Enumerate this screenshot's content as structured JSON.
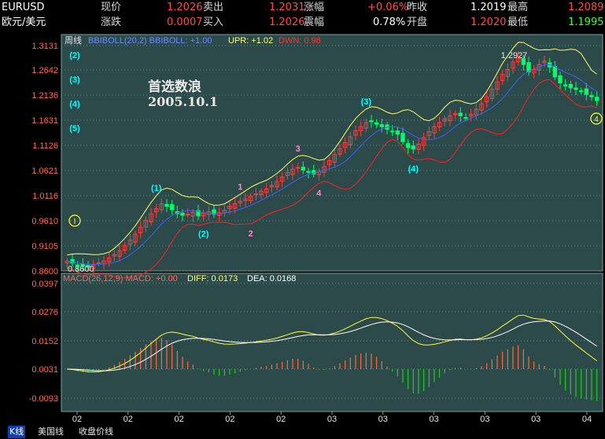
{
  "quote": {
    "symbol": "EURUSD",
    "name": "欧元/美元",
    "cells": [
      {
        "label": "现价",
        "value": "1.2026",
        "color": "red"
      },
      {
        "label": "卖出",
        "value": "1.2031",
        "color": "red"
      },
      {
        "label": "涨幅",
        "value": "+0.06%",
        "color": "red"
      },
      {
        "label": "昨收",
        "value": "1.2019",
        "color": "wht"
      },
      {
        "label": "最高",
        "value": "1.2089",
        "color": "red"
      },
      {
        "label": "涨跌",
        "value": "0.0007",
        "color": "red"
      },
      {
        "label": "买入",
        "value": "1.2026",
        "color": "red"
      },
      {
        "label": "震幅",
        "value": "0.78%",
        "color": "wht"
      },
      {
        "label": "开盘",
        "value": "1.2020",
        "color": "red"
      },
      {
        "label": "最低",
        "value": "1.1995",
        "color": "grn"
      }
    ]
  },
  "annotation": {
    "line1": "首选数浪",
    "line2": "2005.10.1"
  },
  "tabs": [
    "K线",
    "美国线",
    "收盘价线"
  ],
  "chart_data": [
    {
      "type": "candlestick",
      "legend": {
        "period": "周线",
        "indicator": "BBIBOLL(20,2) BBIBOLL: +1.00",
        "upr": "UPR: +1.02",
        "dwn": "DWN: 0.98"
      },
      "y_ticks": [
        "1.3131",
        "1.2642",
        "1.2136",
        "1.1631",
        "1.1126",
        "1.0621",
        "1.0116",
        "0.9610",
        "0.9105",
        "0.8600"
      ],
      "ylim": [
        0.86,
        1.3131
      ],
      "x_ticks": [
        "02",
        "02",
        "02",
        "02",
        "02",
        "03",
        "03",
        "03",
        "03",
        "03",
        "04"
      ],
      "high_label": "1.2927",
      "low_label": "0.8600",
      "colors": {
        "up": "#ff3c3c",
        "down": "#00ff66",
        "mid": "#3a62ff",
        "upper": "#ffff66",
        "lower": "#ff2020",
        "grid": "#5f8a8a",
        "wave_cyan": "#00ffff",
        "wave_pink": "#ff88cc"
      },
      "closes": [
        0.88,
        0.876,
        0.872,
        0.87,
        0.868,
        0.872,
        0.876,
        0.88,
        0.886,
        0.893,
        0.901,
        0.911,
        0.922,
        0.934,
        0.948,
        0.962,
        0.975,
        0.985,
        0.995,
        0.99,
        0.983,
        0.975,
        0.972,
        0.974,
        0.978,
        0.971,
        0.976,
        0.979,
        0.974,
        0.977,
        0.982,
        0.99,
        0.995,
        1.0,
        1.005,
        1.01,
        1.015,
        1.02,
        1.025,
        1.032,
        1.04,
        1.049,
        1.058,
        1.065,
        1.068,
        1.063,
        1.058,
        1.055,
        1.06,
        1.07,
        1.082,
        1.094,
        1.106,
        1.118,
        1.13,
        1.142,
        1.15,
        1.158,
        1.16,
        1.155,
        1.15,
        1.145,
        1.14,
        1.135,
        1.12,
        1.108,
        1.105,
        1.115,
        1.128,
        1.14,
        1.15,
        1.158,
        1.166,
        1.172,
        1.176,
        1.172,
        1.168,
        1.175,
        1.185,
        1.196,
        1.21,
        1.225,
        1.24,
        1.255,
        1.265,
        1.28,
        1.29,
        1.275,
        1.26,
        1.265,
        1.275,
        1.282,
        1.27,
        1.25,
        1.238,
        1.232,
        1.228,
        1.225,
        1.222,
        1.215,
        1.21,
        1.2026
      ],
      "waves": [
        {
          "label": "(1)",
          "idx": 17,
          "pos": "above",
          "color": "cyan"
        },
        {
          "label": "(2)",
          "idx": 26,
          "pos": "below",
          "color": "cyan"
        },
        {
          "label": "1",
          "idx": 33,
          "pos": "above",
          "color": "pink"
        },
        {
          "label": "2",
          "idx": 35,
          "pos": "below",
          "color": "pink"
        },
        {
          "label": "3",
          "idx": 44,
          "pos": "above",
          "color": "pink"
        },
        {
          "label": "4",
          "idx": 48,
          "pos": "below",
          "color": "pink"
        },
        {
          "label": "(3)",
          "idx": 57,
          "pos": "above",
          "color": "cyan"
        },
        {
          "label": "(4)",
          "idx": 66,
          "pos": "below",
          "color": "cyan"
        }
      ],
      "left_wave_labels": [
        "(2)",
        "(3)",
        "(4)",
        "(5)"
      ]
    },
    {
      "type": "macd",
      "legend": {
        "title": "MACD(26,12,9) MACD: +0.00",
        "diff": "DIFF: 0.0173",
        "dea": "DEA: 0.0168"
      },
      "y_ticks": [
        "0.0397",
        "0.0276",
        "0.0152",
        "0.0031",
        "-0.0093"
      ],
      "ylim": [
        -0.015,
        0.044
      ],
      "colors": {
        "diff": "#ffff33",
        "dea": "#ffffff",
        "pos": "#ff6a3c",
        "neg": "#22cc22"
      }
    }
  ]
}
